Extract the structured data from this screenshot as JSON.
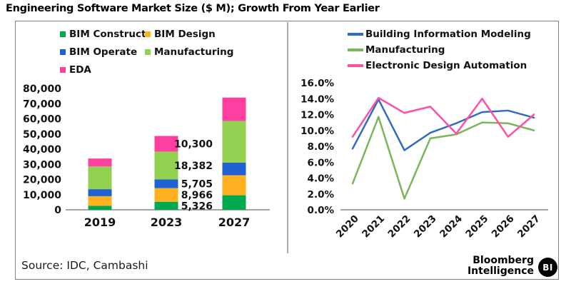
{
  "title": "Engineering Software Market Size ($ M); Growth From Year Earlier",
  "source": "Source: IDC, Cambashi",
  "branding": {
    "line1": "Bloomberg",
    "line2": "Intelligence",
    "logo": "BI"
  },
  "style": {
    "frame_border": "#808080",
    "divider": "#ababab",
    "axis": "#a6a6a6",
    "text": "#111111",
    "background": "#ffffff",
    "logo_bg": "#000000",
    "logo_fg": "#ffffff"
  },
  "chart_data": [
    {
      "type": "bar",
      "stacked": true,
      "title": "Engineering Software Market Size ($ M)",
      "xlabel": "",
      "ylabel": "",
      "categories": [
        "2019",
        "2023",
        "2027"
      ],
      "series": [
        {
          "name": "BIM Construct",
          "color": "#00A950",
          "values": [
            2600,
            5326,
            9600
          ]
        },
        {
          "name": "BIM Design",
          "color": "#FFB120",
          "values": [
            6400,
            8966,
            13200
          ]
        },
        {
          "name": "BIM Operate",
          "color": "#1F60D2",
          "values": [
            4600,
            5705,
            8300
          ]
        },
        {
          "name": "Manufacturing",
          "color": "#92D050",
          "values": [
            15000,
            18382,
            27500
          ]
        },
        {
          "name": "EDA",
          "color": "#FF3FA0",
          "values": [
            5200,
            10300,
            15400
          ]
        }
      ],
      "data_labels": {
        "category": "2023",
        "values": [
          "5,326",
          "8,966",
          "5,705",
          "18,382",
          "10,300"
        ]
      },
      "ylim": [
        0,
        80000
      ],
      "ytick_step": 10000,
      "yticks": [
        "80,000",
        "70,000",
        "60,000",
        "50,000",
        "40,000",
        "30,000",
        "20,000",
        "10,000",
        "0"
      ],
      "grid": false,
      "legend_position": "top"
    },
    {
      "type": "line",
      "title": "Growth From Year Earlier",
      "xlabel": "",
      "ylabel": "",
      "x": [
        "2020",
        "2021",
        "2022",
        "2023",
        "2024",
        "2025",
        "2026",
        "2027"
      ],
      "series": [
        {
          "name": "Building Information Modeling",
          "color": "#2E6CC6",
          "values": [
            7.7,
            13.9,
            7.5,
            9.7,
            10.9,
            12.3,
            12.5,
            11.6
          ]
        },
        {
          "name": "Manufacturing",
          "color": "#7AB65B",
          "values": [
            3.3,
            11.7,
            1.4,
            9.0,
            9.5,
            11.0,
            10.9,
            10.0
          ]
        },
        {
          "name": "Electronic Design Automation",
          "color": "#FF4FA6",
          "values": [
            9.2,
            14.1,
            12.2,
            13.0,
            9.6,
            14.0,
            9.2,
            12.0
          ]
        }
      ],
      "ylim": [
        0,
        16
      ],
      "ytick_step": 2,
      "yticks": [
        "16.0%",
        "14.0%",
        "12.0%",
        "10.0%",
        "8.0%",
        "6.0%",
        "4.0%",
        "2.0%",
        "0.0%"
      ],
      "grid": false,
      "legend_position": "top"
    }
  ]
}
